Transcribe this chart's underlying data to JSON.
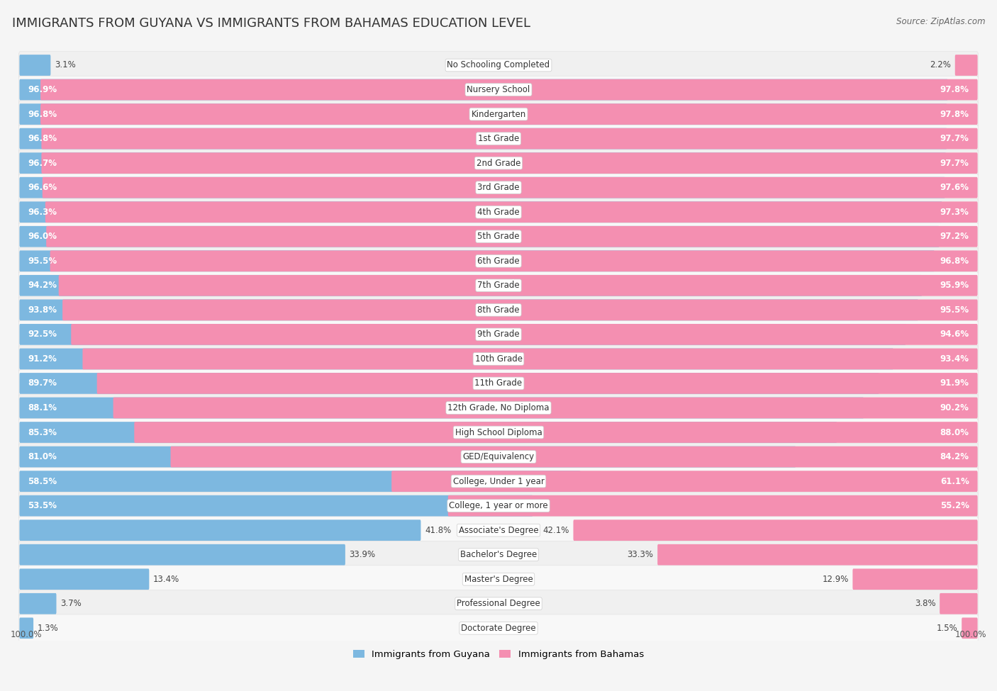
{
  "title": "IMMIGRANTS FROM GUYANA VS IMMIGRANTS FROM BAHAMAS EDUCATION LEVEL",
  "source": "Source: ZipAtlas.com",
  "categories": [
    "No Schooling Completed",
    "Nursery School",
    "Kindergarten",
    "1st Grade",
    "2nd Grade",
    "3rd Grade",
    "4th Grade",
    "5th Grade",
    "6th Grade",
    "7th Grade",
    "8th Grade",
    "9th Grade",
    "10th Grade",
    "11th Grade",
    "12th Grade, No Diploma",
    "High School Diploma",
    "GED/Equivalency",
    "College, Under 1 year",
    "College, 1 year or more",
    "Associate's Degree",
    "Bachelor's Degree",
    "Master's Degree",
    "Professional Degree",
    "Doctorate Degree"
  ],
  "guyana": [
    3.1,
    96.9,
    96.8,
    96.8,
    96.7,
    96.6,
    96.3,
    96.0,
    95.5,
    94.2,
    93.8,
    92.5,
    91.2,
    89.7,
    88.1,
    85.3,
    81.0,
    58.5,
    53.5,
    41.8,
    33.9,
    13.4,
    3.7,
    1.3
  ],
  "bahamas": [
    2.2,
    97.8,
    97.8,
    97.7,
    97.7,
    97.6,
    97.3,
    97.2,
    96.8,
    95.9,
    95.5,
    94.6,
    93.4,
    91.9,
    90.2,
    88.0,
    84.2,
    61.1,
    55.2,
    42.1,
    33.3,
    12.9,
    3.8,
    1.5
  ],
  "guyana_color": "#7db8e0",
  "bahamas_color": "#f48fb1",
  "row_bg_odd": "#efefef",
  "row_bg_even": "#fafafa",
  "bar_bg_color": "#ffffff",
  "legend_guyana": "Immigrants from Guyana",
  "legend_bahamas": "Immigrants from Bahamas",
  "title_fontsize": 13,
  "label_fontsize": 8.5,
  "value_fontsize": 8.5
}
